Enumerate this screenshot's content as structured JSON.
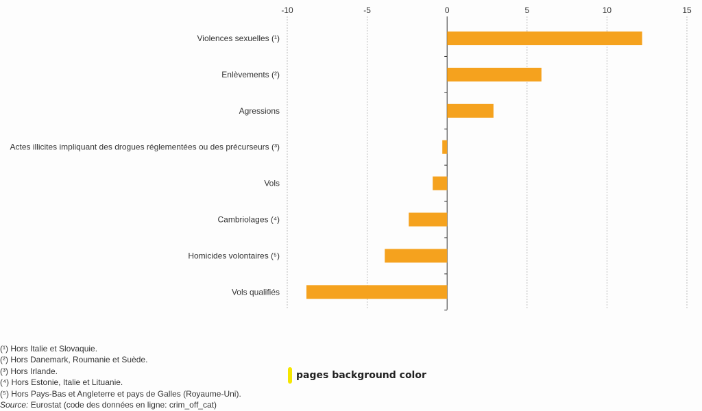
{
  "chart_data": {
    "type": "bar",
    "orientation": "horizontal",
    "categories": [
      "Violences sexuelles (¹)",
      "Enlèvements (²)",
      "Agressions",
      "Actes illicites impliquant des drogues réglementées ou des précurseurs (³)",
      "Vols",
      "Cambriolages (⁴)",
      "Homicides volontaires (⁵)",
      "Vols qualifiés"
    ],
    "values": [
      12.2,
      5.9,
      2.9,
      -0.3,
      -0.9,
      -2.4,
      -3.9,
      -8.8
    ],
    "xlim": [
      -10,
      15
    ],
    "xticks": [
      -10,
      -5,
      0,
      5,
      10,
      15
    ],
    "axis_position": "top",
    "grid": true,
    "bar_color": "#f5a21e"
  },
  "footnotes": [
    "(¹) Hors Italie et Slovaquie.",
    "(²) Hors Danemark, Roumanie et Suède.",
    "(³) Hors Irlande.",
    "(⁴) Hors Estonie, Italie et Lituanie.",
    "(⁵) Hors Pays-Bas et Angleterre et pays de Galles (Royaume-Uni)."
  ],
  "source": {
    "label": "Source:",
    "text": " Eurostat (code des données en ligne: crim_off_cat)"
  },
  "overlay_text": "pages background color"
}
